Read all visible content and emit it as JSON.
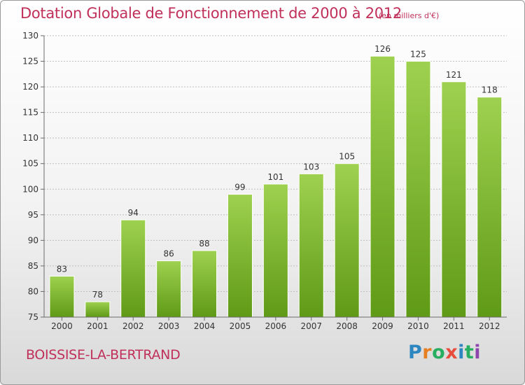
{
  "header": {
    "title": "Dotation Globale de Fonctionnement de 2000 à 2012",
    "unit": "(en milliers d'€)"
  },
  "footer": {
    "commune": "BOISSISE-LA-BERTRAND",
    "logo_letters": [
      "P",
      "r",
      "o",
      "x",
      "i",
      "t",
      "i"
    ],
    "logo_colors": [
      "#2e86c1",
      "#e67e22",
      "#27ae60",
      "#e74c3c",
      "#2e86c1",
      "#27ae60",
      "#8e44ad"
    ]
  },
  "colors": {
    "accent": "#c0305a",
    "bar_top": "#9ed14f",
    "bar_bottom": "#5f9a16",
    "grid": "#bfbfbf",
    "axis": "#6b6b6b"
  },
  "chart_data": {
    "type": "bar",
    "title": "Dotation Globale de Fonctionnement de 2000 à 2012",
    "subtitle": "(en milliers d'€)",
    "categories": [
      "2000",
      "2001",
      "2002",
      "2003",
      "2004",
      "2005",
      "2006",
      "2007",
      "2008",
      "2009",
      "2010",
      "2011",
      "2012"
    ],
    "values": [
      83,
      78,
      94,
      86,
      88,
      99,
      101,
      103,
      105,
      126,
      125,
      121,
      118
    ],
    "ylim": [
      75,
      130
    ],
    "yticks": [
      75,
      80,
      85,
      90,
      95,
      100,
      105,
      110,
      115,
      120,
      125,
      130
    ],
    "grid": true,
    "legend": "none",
    "xlabel": "",
    "ylabel": ""
  }
}
